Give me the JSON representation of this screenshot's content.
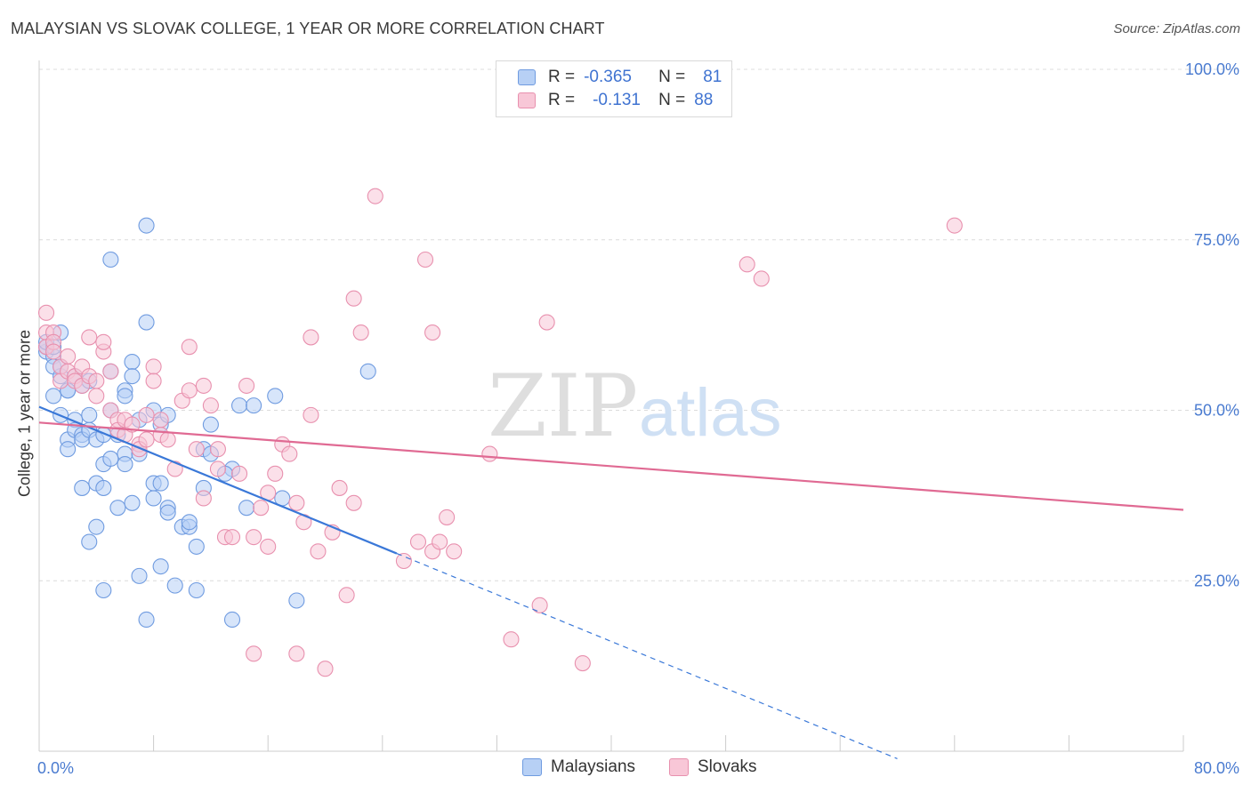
{
  "title": "MALAYSIAN VS SLOVAK COLLEGE, 1 YEAR OR MORE CORRELATION CHART",
  "source": "Source: ZipAtlas.com",
  "watermark": {
    "zip": "ZIP",
    "atlas": "atlas"
  },
  "legend": {
    "rows": [
      {
        "r_label": "R =",
        "r_value": "-0.365",
        "n_label": "N =",
        "n_value": "81"
      },
      {
        "r_label": "R =",
        "r_value": "-0.131",
        "n_label": "N =",
        "n_value": "88"
      }
    ]
  },
  "bottom_legend": [
    "Malaysians",
    "Slovaks"
  ],
  "colors": {
    "blue_fill": "#b7d0f5",
    "blue_stroke": "#6f9be0",
    "blue_line": "#3a78d8",
    "pink_fill": "#f8c7d7",
    "pink_stroke": "#e890ae",
    "pink_line": "#e06a93",
    "grid": "#dcdcdc",
    "tick_text": "#4a7bd0"
  },
  "chart_data": {
    "type": "scatter",
    "title": "MALAYSIAN VS SLOVAK COLLEGE, 1 YEAR OR MORE CORRELATION CHART",
    "xlabel": "",
    "ylabel": "College, 1 year or more",
    "xlim": [
      0,
      80
    ],
    "ylim": [
      0,
      100
    ],
    "x_tick_labels": [
      "0.0%",
      "80.0%"
    ],
    "y_ticks": [
      25,
      50,
      75,
      100
    ],
    "y_tick_labels": [
      "25.0%",
      "50.0%",
      "75.0%",
      "100.0%"
    ],
    "series": [
      {
        "name": "Malaysians",
        "r": -0.365,
        "n": 81,
        "trend": {
          "x0": 0,
          "y0": 50.5,
          "x1": 25,
          "y1": 29.0,
          "dash_to_x": 60
        },
        "points": [
          [
            0.5,
            58.6
          ],
          [
            0.5,
            59.3
          ],
          [
            0.5,
            60.0
          ],
          [
            1.0,
            57.9
          ],
          [
            1.0,
            56.4
          ],
          [
            1.0,
            52.1
          ],
          [
            1.5,
            61.4
          ],
          [
            1.5,
            55.0
          ],
          [
            1.5,
            49.3
          ],
          [
            2.0,
            52.9
          ],
          [
            2.0,
            45.7
          ],
          [
            2.0,
            44.3
          ],
          [
            2.5,
            55.0
          ],
          [
            2.5,
            48.6
          ],
          [
            2.5,
            47.1
          ],
          [
            3.0,
            53.6
          ],
          [
            3.0,
            46.4
          ],
          [
            3.0,
            45.7
          ],
          [
            3.0,
            38.6
          ],
          [
            3.5,
            49.3
          ],
          [
            3.5,
            47.1
          ],
          [
            3.5,
            30.7
          ],
          [
            4.0,
            45.7
          ],
          [
            4.0,
            39.3
          ],
          [
            4.0,
            32.9
          ],
          [
            4.5,
            42.1
          ],
          [
            4.5,
            38.6
          ],
          [
            4.5,
            23.6
          ],
          [
            5.0,
            72.1
          ],
          [
            5.0,
            55.7
          ],
          [
            5.0,
            50.0
          ],
          [
            5.0,
            42.9
          ],
          [
            5.5,
            46.4
          ],
          [
            5.5,
            35.7
          ],
          [
            6.0,
            52.9
          ],
          [
            6.0,
            43.6
          ],
          [
            6.0,
            42.1
          ],
          [
            6.5,
            57.1
          ],
          [
            6.5,
            55.0
          ],
          [
            6.5,
            36.4
          ],
          [
            7.0,
            48.6
          ],
          [
            7.0,
            25.7
          ],
          [
            7.0,
            43.6
          ],
          [
            7.5,
            77.1
          ],
          [
            7.5,
            62.9
          ],
          [
            7.5,
            19.3
          ],
          [
            8.0,
            50.0
          ],
          [
            8.0,
            39.3
          ],
          [
            8.0,
            37.1
          ],
          [
            8.5,
            27.1
          ],
          [
            8.5,
            39.3
          ],
          [
            8.5,
            47.9
          ],
          [
            9.0,
            35.7
          ],
          [
            9.0,
            35.0
          ],
          [
            9.0,
            49.3
          ],
          [
            9.5,
            24.3
          ],
          [
            10.0,
            32.9
          ],
          [
            10.5,
            32.9
          ],
          [
            10.5,
            33.6
          ],
          [
            11.0,
            30.0
          ],
          [
            11.0,
            23.6
          ],
          [
            11.5,
            38.6
          ],
          [
            11.5,
            44.3
          ],
          [
            12.0,
            43.6
          ],
          [
            12.0,
            47.9
          ],
          [
            13.5,
            41.4
          ],
          [
            13.5,
            19.3
          ],
          [
            14.0,
            50.7
          ],
          [
            14.5,
            35.7
          ],
          [
            15.0,
            50.7
          ],
          [
            16.5,
            52.1
          ],
          [
            18.0,
            22.1
          ],
          [
            23.0,
            55.7
          ],
          [
            1.5,
            56.4
          ],
          [
            2.0,
            52.9
          ],
          [
            3.5,
            54.3
          ],
          [
            4.5,
            46.4
          ],
          [
            13.0,
            40.7
          ],
          [
            17.0,
            37.1
          ],
          [
            1.0,
            59.3
          ],
          [
            6.0,
            52.1
          ]
        ]
      },
      {
        "name": "Slovaks",
        "r": -0.131,
        "n": 88,
        "trend": {
          "x0": 0,
          "y0": 48.2,
          "x1": 80,
          "y1": 35.4
        },
        "points": [
          [
            0.5,
            64.3
          ],
          [
            0.5,
            61.4
          ],
          [
            0.5,
            59.3
          ],
          [
            1.0,
            61.4
          ],
          [
            1.0,
            60.0
          ],
          [
            1.0,
            58.6
          ],
          [
            1.5,
            56.4
          ],
          [
            1.5,
            54.3
          ],
          [
            2.0,
            57.9
          ],
          [
            2.0,
            55.7
          ],
          [
            2.5,
            55.0
          ],
          [
            2.5,
            54.3
          ],
          [
            3.0,
            56.4
          ],
          [
            3.0,
            53.6
          ],
          [
            3.5,
            60.7
          ],
          [
            3.5,
            55.0
          ],
          [
            4.0,
            54.3
          ],
          [
            4.0,
            52.1
          ],
          [
            4.5,
            58.6
          ],
          [
            4.5,
            60.0
          ],
          [
            5.0,
            55.7
          ],
          [
            5.0,
            50.0
          ],
          [
            5.5,
            48.6
          ],
          [
            5.5,
            47.1
          ],
          [
            6.0,
            48.6
          ],
          [
            6.0,
            46.4
          ],
          [
            6.5,
            47.9
          ],
          [
            7.0,
            45.0
          ],
          [
            7.0,
            44.3
          ],
          [
            7.5,
            49.3
          ],
          [
            7.5,
            45.7
          ],
          [
            8.0,
            56.4
          ],
          [
            8.0,
            54.3
          ],
          [
            8.5,
            46.4
          ],
          [
            8.5,
            48.6
          ],
          [
            9.0,
            45.7
          ],
          [
            9.5,
            41.4
          ],
          [
            10.0,
            51.4
          ],
          [
            10.5,
            52.9
          ],
          [
            10.5,
            59.3
          ],
          [
            11.0,
            44.3
          ],
          [
            11.5,
            37.1
          ],
          [
            11.5,
            53.6
          ],
          [
            12.0,
            50.7
          ],
          [
            12.5,
            44.3
          ],
          [
            12.5,
            41.4
          ],
          [
            13.0,
            31.4
          ],
          [
            13.5,
            31.4
          ],
          [
            14.0,
            40.7
          ],
          [
            14.5,
            53.6
          ],
          [
            15.0,
            31.4
          ],
          [
            15.5,
            35.7
          ],
          [
            16.0,
            37.9
          ],
          [
            16.0,
            30.0
          ],
          [
            16.5,
            40.7
          ],
          [
            17.0,
            45.0
          ],
          [
            17.5,
            43.6
          ],
          [
            18.0,
            36.4
          ],
          [
            18.0,
            14.3
          ],
          [
            18.5,
            33.6
          ],
          [
            19.0,
            49.3
          ],
          [
            19.0,
            60.7
          ],
          [
            19.5,
            29.3
          ],
          [
            20.0,
            12.1
          ],
          [
            20.5,
            32.1
          ],
          [
            21.0,
            38.6
          ],
          [
            21.5,
            22.9
          ],
          [
            22.0,
            36.4
          ],
          [
            22.0,
            66.4
          ],
          [
            22.5,
            61.4
          ],
          [
            23.5,
            81.4
          ],
          [
            25.5,
            27.9
          ],
          [
            26.5,
            30.7
          ],
          [
            27.0,
            72.1
          ],
          [
            27.5,
            29.3
          ],
          [
            27.5,
            61.4
          ],
          [
            28.0,
            30.7
          ],
          [
            28.5,
            34.3
          ],
          [
            29.0,
            29.3
          ],
          [
            31.5,
            43.6
          ],
          [
            33.0,
            16.4
          ],
          [
            35.0,
            21.4
          ],
          [
            35.5,
            62.9
          ],
          [
            38.0,
            12.9
          ],
          [
            49.5,
            71.4
          ],
          [
            50.5,
            69.3
          ],
          [
            64.0,
            77.1
          ],
          [
            15.0,
            14.3
          ]
        ]
      }
    ]
  }
}
